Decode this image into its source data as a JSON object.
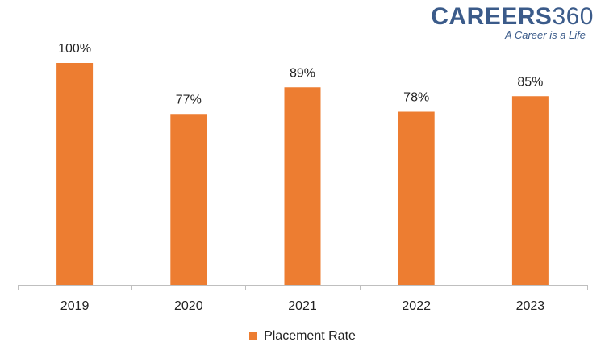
{
  "logo": {
    "word": "CAREERS",
    "number": "360",
    "tagline": "A Career is a Life"
  },
  "colors": {
    "bar": "#ed7d31",
    "logo": "#3b5b8a",
    "axis": "#bfbfbf",
    "text": "#222222"
  },
  "chart_data": {
    "type": "bar",
    "categories": [
      "2019",
      "2020",
      "2021",
      "2022",
      "2023"
    ],
    "series": [
      {
        "name": "Placement Rate",
        "values": [
          100,
          77,
          89,
          78,
          85
        ]
      }
    ],
    "data_labels": [
      "100%",
      "77%",
      "89%",
      "78%",
      "85%"
    ],
    "ylim": [
      0,
      100
    ],
    "grid": false,
    "legend_position": "bottom"
  }
}
